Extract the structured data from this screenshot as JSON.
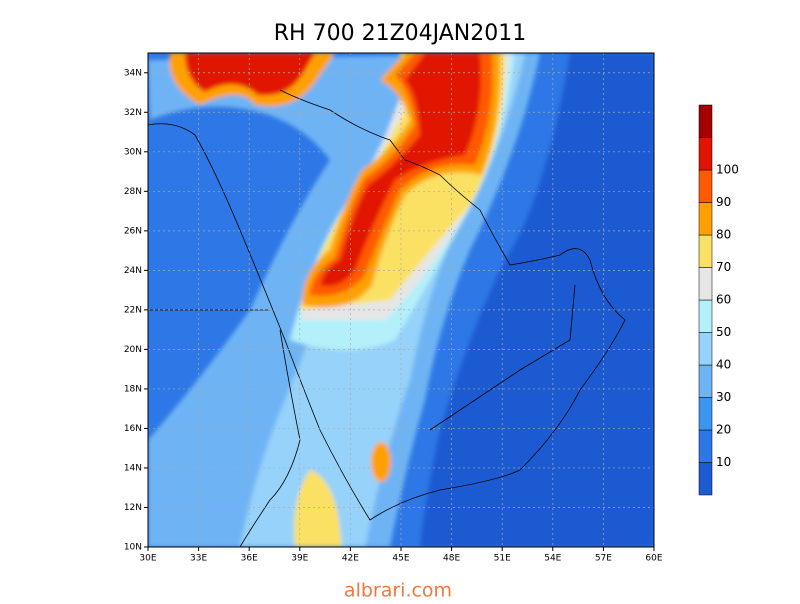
{
  "title": "RH 700 21Z04JAN2011",
  "map": {
    "lon_ticks": [
      "30E",
      "33E",
      "36E",
      "39E",
      "42E",
      "45E",
      "48E",
      "51E",
      "54E",
      "57E",
      "60E"
    ],
    "lat_ticks": [
      "10N",
      "12N",
      "14N",
      "16N",
      "18N",
      "20N",
      "22N",
      "24N",
      "26N",
      "28N",
      "30N",
      "32N",
      "34N"
    ]
  },
  "colorbar": {
    "labels": [
      "10",
      "20",
      "30",
      "40",
      "50",
      "60",
      "70",
      "80",
      "90",
      "100"
    ],
    "colors": [
      "#1e5ad2",
      "#2d78e6",
      "#3c96f0",
      "#6eb4f5",
      "#96d2fa",
      "#b4f0fa",
      "#e6e6e6",
      "#fae164",
      "#ffa000",
      "#ff5a00",
      "#e11400",
      "#a50000"
    ]
  },
  "watermark": "albrari.com"
}
